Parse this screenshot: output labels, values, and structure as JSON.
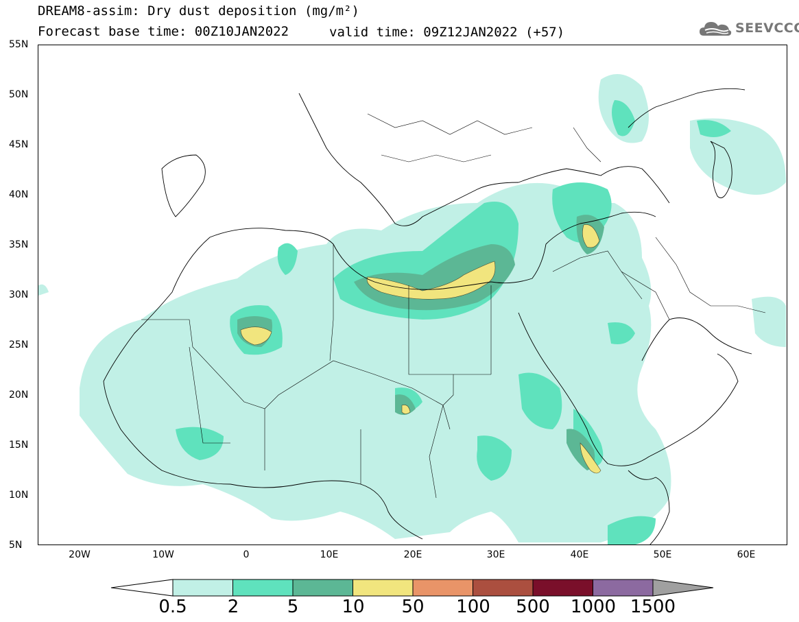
{
  "title": {
    "line1": "DREAM8-assim: Dry dust deposition (mg/m²)",
    "line2_left": "Forecast base time: 00Z10JAN2022",
    "line2_right": "valid time: 09Z12JAN2022 (+57)"
  },
  "logo": {
    "text": "SEEVCCC",
    "icon": "cloud-icon"
  },
  "map": {
    "lat_range": [
      5,
      55
    ],
    "lon_range": [
      -25,
      65
    ],
    "y_ticks": [
      "55N",
      "50N",
      "45N",
      "40N",
      "35N",
      "30N",
      "25N",
      "20N",
      "15N",
      "10N",
      "5N"
    ],
    "x_ticks": [
      "20W",
      "10W",
      "0",
      "10E",
      "20E",
      "30E",
      "40E",
      "50E",
      "60E"
    ]
  },
  "legend": {
    "labels": [
      "0.5",
      "2",
      "5",
      "10",
      "50",
      "100",
      "500",
      "1000",
      "1500"
    ],
    "colors": [
      "#c1f0e6",
      "#5fe2bd",
      "#5cb795",
      "#f1e57e",
      "#e99468",
      "#ab4f3f",
      "#7a0f2a",
      "#8c6aa0",
      "#a0a0a0"
    ],
    "under_color": "#ffffff",
    "over_color": "#a0a0a0"
  }
}
